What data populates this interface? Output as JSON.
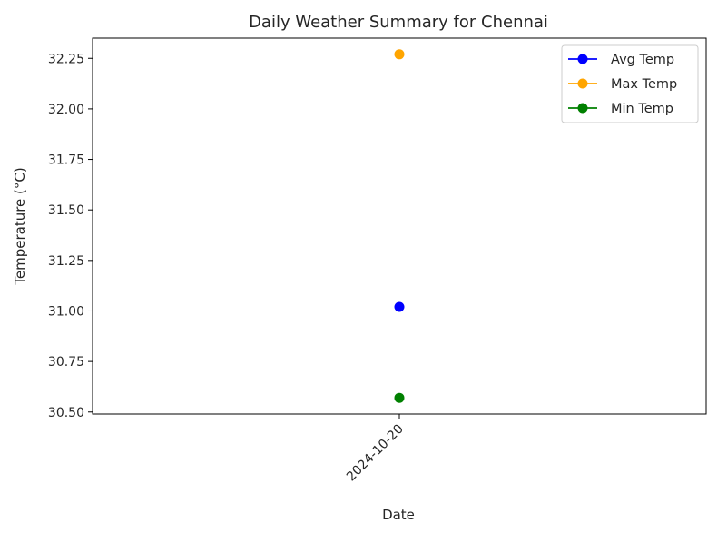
{
  "chart_data": {
    "type": "line",
    "title": "Daily Weather Summary for Chennai",
    "xlabel": "Date",
    "ylabel": "Temperature (°C)",
    "categories": [
      "2024-10-20"
    ],
    "ylim": [
      30.49,
      32.35
    ],
    "yticks": [
      "30.50",
      "30.75",
      "31.00",
      "31.25",
      "31.50",
      "31.75",
      "32.00",
      "32.25"
    ],
    "grid": false,
    "legend_position": "top-right",
    "series": [
      {
        "name": "Avg Temp",
        "color": "#0000ff",
        "values": [
          31.02
        ]
      },
      {
        "name": "Max Temp",
        "color": "#ffa500",
        "values": [
          32.27
        ]
      },
      {
        "name": "Min Temp",
        "color": "#008000",
        "values": [
          30.57
        ]
      }
    ]
  }
}
